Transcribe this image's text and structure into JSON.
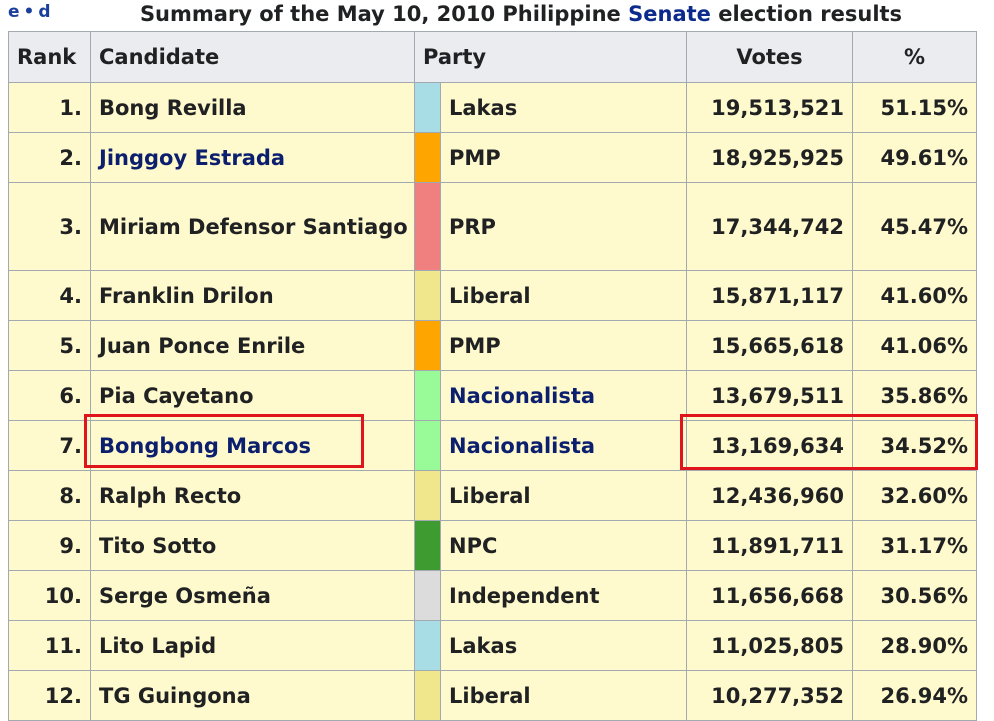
{
  "header": {
    "nav_e": "e",
    "nav_sep": "•",
    "nav_d": "d",
    "title_prefix": "Summary of the May 10, 2010 Philippine ",
    "title_link": "Senate",
    "title_suffix": " election results"
  },
  "table": {
    "columns": {
      "rank": "Rank",
      "candidate": "Candidate",
      "party": "Party",
      "votes": "Votes",
      "percent": "%"
    },
    "rows": [
      {
        "rank": "1.",
        "candidate": "Bong Revilla",
        "party": "Lakas",
        "party_color": "#a8dde6",
        "votes": "19,513,521",
        "percent": "51.15%"
      },
      {
        "rank": "2.",
        "candidate": "Jinggoy Estrada",
        "party": "PMP",
        "party_color": "#ffa500",
        "votes": "18,925,925",
        "percent": "49.61%"
      },
      {
        "rank": "3.",
        "candidate": "Miriam Defensor Santiago",
        "party": "PRP",
        "party_color": "#f08080",
        "votes": "17,344,742",
        "percent": "45.47%"
      },
      {
        "rank": "4.",
        "candidate": "Franklin Drilon",
        "party": "Liberal",
        "party_color": "#f0e68c",
        "votes": "15,871,117",
        "percent": "41.60%"
      },
      {
        "rank": "5.",
        "candidate": "Juan Ponce Enrile",
        "party": "PMP",
        "party_color": "#ffa500",
        "votes": "15,665,618",
        "percent": "41.06%"
      },
      {
        "rank": "6.",
        "candidate": "Pia Cayetano",
        "party": "Nacionalista",
        "party_color": "#98fb98",
        "votes": "13,679,511",
        "percent": "35.86%"
      },
      {
        "rank": "7.",
        "candidate": "Bongbong Marcos",
        "party": "Nacionalista",
        "party_color": "#98fb98",
        "votes": "13,169,634",
        "percent": "34.52%"
      },
      {
        "rank": "8.",
        "candidate": "Ralph Recto",
        "party": "Liberal",
        "party_color": "#f0e68c",
        "votes": "12,436,960",
        "percent": "32.60%"
      },
      {
        "rank": "9.",
        "candidate": "Tito Sotto",
        "party": "NPC",
        "party_color": "#3d9b2f",
        "votes": "11,891,711",
        "percent": "31.17%"
      },
      {
        "rank": "10.",
        "candidate": "Serge Osmeña",
        "party": "Independent",
        "party_color": "#dcdcdc",
        "votes": "11,656,668",
        "percent": "30.56%"
      },
      {
        "rank": "11.",
        "candidate": "Lito Lapid",
        "party": "Lakas",
        "party_color": "#a8dde6",
        "votes": "11,025,805",
        "percent": "28.90%"
      },
      {
        "rank": "12.",
        "candidate": "TG Guingona",
        "party": "Liberal",
        "party_color": "#f0e68c",
        "votes": "10,277,352",
        "percent": "26.94%"
      }
    ]
  },
  "colors": {
    "link": "#1a4aa8",
    "row_bg": "#fffacd",
    "highlight": "#e0151b"
  }
}
